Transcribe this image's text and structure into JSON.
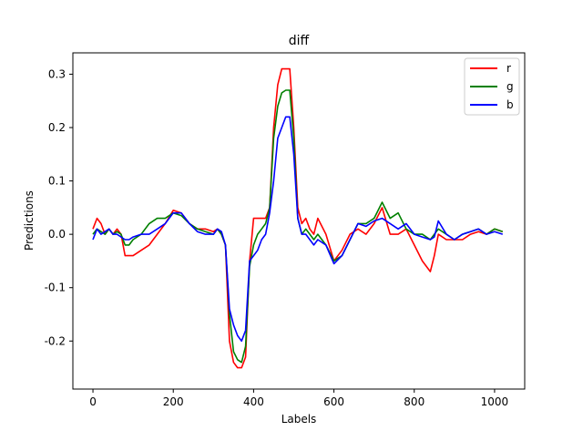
{
  "chart_data": {
    "type": "line",
    "title": "diff",
    "xlabel": "Labels",
    "ylabel": "Predictions",
    "xlim": [
      -50,
      1075
    ],
    "ylim": [
      -0.29,
      0.34
    ],
    "xticks": [
      0,
      200,
      400,
      600,
      800,
      1000
    ],
    "yticks": [
      -0.2,
      -0.1,
      0.0,
      0.1,
      0.2,
      0.3
    ],
    "xtick_labels": [
      "0",
      "200",
      "400",
      "600",
      "800",
      "1000"
    ],
    "ytick_labels": [
      "-0.2",
      "-0.1",
      "0.0",
      "0.1",
      "0.2",
      "0.3"
    ],
    "grid": false,
    "legend_position": "top-right",
    "series": [
      {
        "name": "r",
        "color": "#ff0000",
        "x": [
          0,
          10,
          20,
          30,
          40,
          50,
          60,
          70,
          80,
          90,
          100,
          120,
          140,
          160,
          180,
          200,
          220,
          240,
          260,
          280,
          300,
          310,
          320,
          330,
          340,
          350,
          360,
          370,
          380,
          390,
          400,
          410,
          420,
          430,
          440,
          450,
          460,
          470,
          480,
          490,
          500,
          510,
          520,
          530,
          540,
          550,
          560,
          580,
          600,
          620,
          640,
          660,
          680,
          700,
          720,
          740,
          760,
          780,
          800,
          820,
          840,
          850,
          860,
          880,
          900,
          920,
          940,
          960,
          980,
          1000,
          1020
        ],
        "y": [
          0.01,
          0.03,
          0.02,
          0.0,
          0.01,
          0.0,
          0.01,
          0.0,
          -0.04,
          -0.04,
          -0.04,
          -0.03,
          -0.02,
          0.0,
          0.02,
          0.045,
          0.04,
          0.02,
          0.01,
          0.01,
          0.005,
          0.01,
          0.0,
          -0.02,
          -0.2,
          -0.24,
          -0.25,
          -0.25,
          -0.23,
          -0.05,
          0.03,
          0.03,
          0.03,
          0.03,
          0.05,
          0.2,
          0.28,
          0.31,
          0.31,
          0.31,
          0.2,
          0.05,
          0.02,
          0.03,
          0.01,
          0.0,
          0.03,
          0.0,
          -0.05,
          -0.03,
          0.0,
          0.01,
          0.0,
          0.02,
          0.05,
          0.0,
          0.0,
          0.01,
          -0.02,
          -0.05,
          -0.07,
          -0.04,
          0.0,
          -0.01,
          -0.01,
          -0.01,
          0.0,
          0.005,
          0.0,
          0.01,
          0.005
        ]
      },
      {
        "name": "g",
        "color": "#008000",
        "x": [
          0,
          10,
          20,
          30,
          40,
          50,
          60,
          70,
          80,
          90,
          100,
          120,
          140,
          160,
          180,
          200,
          220,
          240,
          260,
          280,
          300,
          310,
          320,
          330,
          340,
          350,
          360,
          370,
          380,
          390,
          400,
          410,
          420,
          430,
          440,
          450,
          460,
          470,
          480,
          490,
          500,
          510,
          520,
          530,
          540,
          550,
          560,
          580,
          600,
          620,
          640,
          660,
          680,
          700,
          720,
          740,
          760,
          780,
          800,
          820,
          840,
          850,
          860,
          880,
          900,
          920,
          940,
          960,
          980,
          1000,
          1020
        ],
        "y": [
          0.0,
          0.01,
          0.005,
          0.0,
          0.01,
          0.0,
          0.005,
          0.0,
          -0.02,
          -0.02,
          -0.01,
          0.0,
          0.02,
          0.03,
          0.03,
          0.04,
          0.035,
          0.02,
          0.01,
          0.005,
          0.0,
          0.01,
          0.0,
          -0.02,
          -0.15,
          -0.22,
          -0.235,
          -0.24,
          -0.21,
          -0.06,
          -0.02,
          0.0,
          0.01,
          0.02,
          0.05,
          0.18,
          0.24,
          0.265,
          0.27,
          0.27,
          0.18,
          0.03,
          0.0,
          0.01,
          0.0,
          -0.01,
          0.0,
          -0.02,
          -0.05,
          -0.04,
          -0.01,
          0.02,
          0.02,
          0.03,
          0.06,
          0.03,
          0.04,
          0.01,
          0.0,
          0.0,
          -0.01,
          0.0,
          0.01,
          0.0,
          -0.01,
          0.0,
          0.005,
          0.01,
          0.0,
          0.01,
          0.005
        ]
      },
      {
        "name": "b",
        "color": "#0000ff",
        "x": [
          0,
          10,
          20,
          30,
          40,
          50,
          60,
          70,
          80,
          90,
          100,
          120,
          140,
          160,
          180,
          200,
          220,
          240,
          260,
          280,
          300,
          310,
          320,
          330,
          340,
          350,
          360,
          370,
          380,
          390,
          400,
          410,
          420,
          430,
          440,
          450,
          460,
          470,
          480,
          490,
          500,
          510,
          520,
          530,
          540,
          550,
          560,
          580,
          600,
          620,
          640,
          660,
          680,
          700,
          720,
          740,
          760,
          780,
          800,
          820,
          840,
          850,
          860,
          880,
          900,
          920,
          940,
          960,
          980,
          1000,
          1020
        ],
        "y": [
          -0.01,
          0.01,
          0.0,
          0.005,
          0.01,
          0.0,
          0.0,
          -0.005,
          -0.01,
          -0.01,
          -0.005,
          0.0,
          0.0,
          0.01,
          0.02,
          0.04,
          0.04,
          0.02,
          0.005,
          0.0,
          0.0,
          0.01,
          0.005,
          -0.02,
          -0.14,
          -0.17,
          -0.19,
          -0.2,
          -0.18,
          -0.05,
          -0.04,
          -0.03,
          -0.01,
          0.0,
          0.04,
          0.1,
          0.18,
          0.2,
          0.22,
          0.22,
          0.15,
          0.03,
          0.0,
          0.0,
          -0.01,
          -0.02,
          -0.01,
          -0.02,
          -0.055,
          -0.04,
          -0.01,
          0.02,
          0.015,
          0.025,
          0.03,
          0.02,
          0.01,
          0.02,
          0.0,
          -0.005,
          -0.01,
          -0.005,
          0.025,
          0.0,
          -0.01,
          0.0,
          0.005,
          0.01,
          0.0,
          0.005,
          0.0
        ]
      }
    ]
  }
}
